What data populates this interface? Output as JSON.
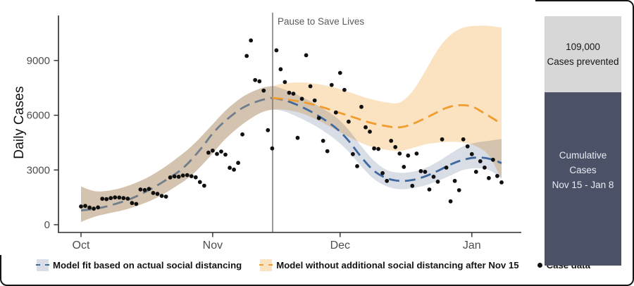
{
  "chart_data": {
    "type": "line",
    "title": "",
    "ylabel": "Daily Cases",
    "grid": "off",
    "legend_position": "bottom",
    "y_axis": {
      "ticks": [
        0,
        3000,
        6000,
        9000
      ],
      "ylim": [
        0,
        11500
      ]
    },
    "x_axis": {
      "tick_labels": [
        "Oct",
        "Nov",
        "Dec",
        "Jan"
      ],
      "tick_days": [
        0,
        31,
        61,
        92
      ],
      "domain_days": [
        0,
        103.5
      ],
      "note": "day 0 = Oct 1"
    },
    "pause_line": {
      "label": "Pause to Save Lives",
      "day": 45.1,
      "date": "Nov 15",
      "color": "#6e6e6e"
    },
    "series": [
      {
        "name": "Model fit based on actual social distancing",
        "line_color": "#3E689E",
        "line_color_history": "#6F7D8C",
        "band_color": "#D8DDE6",
        "line": [
          [
            0,
            780
          ],
          [
            4,
            900
          ],
          [
            8,
            1130
          ],
          [
            12,
            1450
          ],
          [
            16,
            1900
          ],
          [
            20,
            2450
          ],
          [
            24,
            3100
          ],
          [
            28,
            4100
          ],
          [
            31,
            5000
          ],
          [
            34,
            5700
          ],
          [
            38,
            6400
          ],
          [
            42,
            6800
          ],
          [
            45,
            6950
          ],
          [
            48,
            6820
          ],
          [
            52,
            6450
          ],
          [
            56,
            5950
          ],
          [
            60,
            5300
          ],
          [
            63,
            4600
          ],
          [
            66,
            3700
          ],
          [
            69,
            2950
          ],
          [
            72,
            2550
          ],
          [
            75,
            2400
          ],
          [
            78,
            2450
          ],
          [
            81,
            2650
          ],
          [
            84,
            2950
          ],
          [
            87,
            3300
          ],
          [
            90,
            3560
          ],
          [
            93,
            3680
          ],
          [
            96,
            3620
          ],
          [
            99,
            3380
          ]
        ],
        "band": [
          [
            0,
            150,
            2100
          ],
          [
            3,
            420,
            1850
          ],
          [
            6,
            600,
            1850
          ],
          [
            10,
            800,
            2050
          ],
          [
            14,
            1100,
            2400
          ],
          [
            18,
            1500,
            2900
          ],
          [
            22,
            2050,
            3550
          ],
          [
            26,
            2700,
            4300
          ],
          [
            30,
            3650,
            5250
          ],
          [
            34,
            4700,
            6250
          ],
          [
            38,
            5500,
            7000
          ],
          [
            42,
            6100,
            7450
          ],
          [
            45,
            6300,
            7600
          ],
          [
            48,
            6200,
            7400
          ],
          [
            52,
            5800,
            7000
          ],
          [
            56,
            5300,
            6500
          ],
          [
            60,
            4650,
            5900
          ],
          [
            63,
            4000,
            5200
          ],
          [
            66,
            3200,
            4300
          ],
          [
            69,
            2500,
            3500
          ],
          [
            72,
            2100,
            3000
          ],
          [
            75,
            1950,
            2850
          ],
          [
            78,
            2000,
            2900
          ],
          [
            81,
            2150,
            3100
          ],
          [
            84,
            2400,
            3450
          ],
          [
            87,
            2700,
            3900
          ],
          [
            90,
            3000,
            4300
          ],
          [
            93,
            3100,
            4500
          ],
          [
            96,
            3000,
            4600
          ],
          [
            99,
            2550,
            4700
          ]
        ]
      },
      {
        "name": "Model without additional social distancing after Nov 15",
        "line_color": "#F09C2E",
        "band_color": "#FBE3C2",
        "start_day": 45,
        "line": [
          [
            45,
            6950
          ],
          [
            48,
            6880
          ],
          [
            52,
            6730
          ],
          [
            56,
            6500
          ],
          [
            60,
            6200
          ],
          [
            64,
            5900
          ],
          [
            68,
            5600
          ],
          [
            72,
            5400
          ],
          [
            75,
            5340
          ],
          [
            78,
            5520
          ],
          [
            82,
            5950
          ],
          [
            86,
            6400
          ],
          [
            89,
            6550
          ],
          [
            92,
            6480
          ],
          [
            95,
            6100
          ],
          [
            99,
            5530
          ]
        ],
        "band": [
          [
            0,
            150,
            2100
          ],
          [
            3,
            420,
            1850
          ],
          [
            6,
            600,
            1850
          ],
          [
            10,
            800,
            2050
          ],
          [
            14,
            1100,
            2400
          ],
          [
            18,
            1500,
            2900
          ],
          [
            22,
            2050,
            3550
          ],
          [
            26,
            2700,
            4300
          ],
          [
            30,
            3650,
            5250
          ],
          [
            34,
            4700,
            6250
          ],
          [
            38,
            5500,
            7000
          ],
          [
            42,
            6100,
            7450
          ],
          [
            45,
            6300,
            7600
          ],
          [
            48,
            6300,
            7750
          ],
          [
            52,
            6100,
            7800
          ],
          [
            56,
            5700,
            7700
          ],
          [
            60,
            5200,
            7500
          ],
          [
            64,
            4700,
            7200
          ],
          [
            68,
            4300,
            6900
          ],
          [
            72,
            4100,
            6700
          ],
          [
            75,
            4050,
            6700
          ],
          [
            78,
            4200,
            7300
          ],
          [
            81,
            4400,
            8400
          ],
          [
            84,
            4500,
            9600
          ],
          [
            87,
            4550,
            10400
          ],
          [
            90,
            4500,
            10800
          ],
          [
            93,
            4300,
            10900
          ],
          [
            96,
            3800,
            10900
          ],
          [
            99,
            2500,
            10800
          ]
        ]
      }
    ],
    "case_data": {
      "label": "Case data",
      "color": "#101010",
      "points": [
        [
          0,
          1000
        ],
        [
          1,
          1030
        ],
        [
          2,
          940
        ],
        [
          3,
          880
        ],
        [
          4,
          950
        ],
        [
          5,
          1420
        ],
        [
          6,
          1400
        ],
        [
          7,
          1460
        ],
        [
          8,
          1500
        ],
        [
          9,
          1490
        ],
        [
          10,
          1460
        ],
        [
          11,
          1430
        ],
        [
          12,
          1190
        ],
        [
          13,
          1140
        ],
        [
          14,
          1930
        ],
        [
          15,
          1900
        ],
        [
          16,
          1960
        ],
        [
          17,
          1740
        ],
        [
          18,
          1690
        ],
        [
          19,
          1580
        ],
        [
          20,
          1540
        ],
        [
          21,
          2590
        ],
        [
          22,
          2650
        ],
        [
          23,
          2630
        ],
        [
          24,
          2700
        ],
        [
          25,
          2720
        ],
        [
          26,
          2660
        ],
        [
          27,
          2600
        ],
        [
          28,
          2340
        ],
        [
          29,
          2140
        ],
        [
          30,
          3950
        ],
        [
          31,
          4060
        ],
        [
          32,
          3880
        ],
        [
          33,
          4010
        ],
        [
          34,
          3840
        ],
        [
          35,
          3120
        ],
        [
          36,
          3020
        ],
        [
          37,
          3390
        ],
        [
          38,
          4950
        ],
        [
          39,
          9250
        ],
        [
          40,
          10100
        ],
        [
          41,
          7930
        ],
        [
          42,
          7860
        ],
        [
          43,
          7350
        ],
        [
          44,
          5180
        ],
        [
          45,
          4180
        ],
        [
          46,
          9560
        ],
        [
          47,
          8520
        ],
        [
          48,
          7820
        ],
        [
          49,
          7230
        ],
        [
          50,
          7180
        ],
        [
          51,
          4760
        ],
        [
          52,
          6900
        ],
        [
          53,
          9290
        ],
        [
          54,
          7590
        ],
        [
          55,
          6810
        ],
        [
          56,
          5845
        ],
        [
          57,
          4600
        ],
        [
          58,
          4030
        ],
        [
          59,
          7660
        ],
        [
          60,
          6150
        ],
        [
          61,
          8320
        ],
        [
          62,
          7390
        ],
        [
          63,
          5650
        ],
        [
          64,
          3870
        ],
        [
          65,
          3210
        ],
        [
          66,
          6460
        ],
        [
          67,
          5340
        ],
        [
          68,
          5100
        ],
        [
          69,
          4180
        ],
        [
          70,
          4150
        ],
        [
          71,
          2825
        ],
        [
          72,
          2400
        ],
        [
          73,
          4600
        ],
        [
          74,
          4255
        ],
        [
          75,
          3900
        ],
        [
          76,
          3170
        ],
        [
          77,
          3790
        ],
        [
          78,
          2130
        ],
        [
          79,
          3900
        ],
        [
          80,
          2940
        ],
        [
          81,
          2900
        ],
        [
          82,
          1930
        ],
        [
          83,
          2630
        ],
        [
          84,
          2360
        ],
        [
          85,
          4680
        ],
        [
          86,
          3130
        ],
        [
          87,
          1280
        ],
        [
          88,
          2400
        ],
        [
          89,
          1890
        ],
        [
          90,
          4680
        ],
        [
          91,
          4295
        ],
        [
          92,
          3870
        ],
        [
          93,
          2900
        ],
        [
          94,
          3480
        ],
        [
          95,
          3130
        ],
        [
          96,
          2555
        ],
        [
          97,
          3560
        ],
        [
          98,
          2670
        ],
        [
          99,
          2320
        ]
      ]
    }
  },
  "side_panel": {
    "prevented": {
      "value": "109,000",
      "label": "Cases prevented",
      "color": "#D7D7D7"
    },
    "cumulative": {
      "line1": "Cumulative Cases",
      "line2": "Nov 15 - Jan 8",
      "color": "#4B5268"
    }
  }
}
